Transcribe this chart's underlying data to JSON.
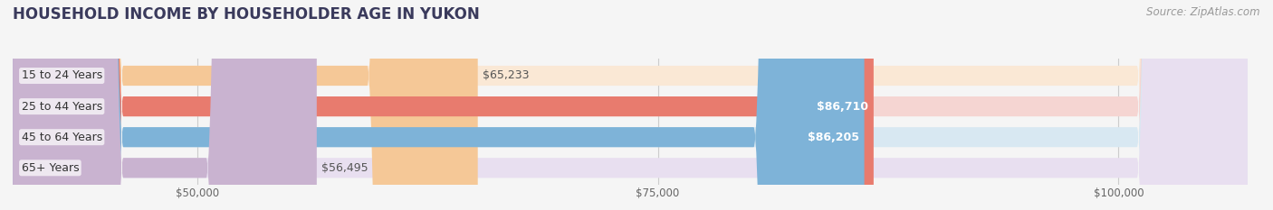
{
  "title": "HOUSEHOLD INCOME BY HOUSEHOLDER AGE IN YUKON",
  "source": "Source: ZipAtlas.com",
  "categories": [
    "15 to 24 Years",
    "25 to 44 Years",
    "45 to 64 Years",
    "65+ Years"
  ],
  "values": [
    65233,
    86710,
    86205,
    56495
  ],
  "bar_colors": [
    "#F5C897",
    "#E87B6E",
    "#7EB3D8",
    "#C9B3D0"
  ],
  "bar_bg_colors": [
    "#FAE8D5",
    "#F5D5D2",
    "#D8E8F2",
    "#E8DFF0"
  ],
  "value_labels": [
    "$65,233",
    "$86,710",
    "$86,205",
    "$56,495"
  ],
  "value_label_inside": [
    false,
    true,
    true,
    false
  ],
  "xticks": [
    50000,
    75000,
    100000
  ],
  "xtick_labels": [
    "$50,000",
    "$75,000",
    "$100,000"
  ],
  "xmin": 40000,
  "xmax": 107000,
  "title_color": "#3a3a5c",
  "source_color": "#999999",
  "background_color": "#f5f5f5",
  "title_fontsize": 12,
  "label_fontsize": 9,
  "value_fontsize": 9,
  "source_fontsize": 8.5
}
